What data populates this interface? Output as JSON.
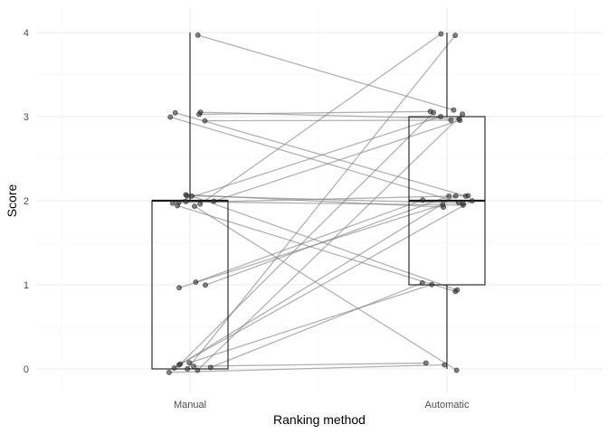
{
  "chart_data": {
    "type": "box",
    "overlay": "jittered points with paired lines",
    "title": "",
    "xlabel": "Ranking method",
    "ylabel": "Score",
    "categories": [
      "Manual",
      "Automatic"
    ],
    "ylim": [
      -0.3,
      4.3
    ],
    "yticks": [
      "0",
      "1",
      "2",
      "3",
      "4"
    ],
    "grid": true,
    "legend": "none",
    "box_stats": [
      {
        "category": "Manual",
        "min": 0,
        "q1": 0,
        "median": 2,
        "q3": 2,
        "max": 4
      },
      {
        "category": "Automatic",
        "min": 0,
        "q1": 1,
        "median": 2,
        "q3": 3,
        "max": 4
      }
    ],
    "pairs": [
      {
        "manual": 4,
        "automatic": 3
      },
      {
        "manual": 3,
        "automatic": 3
      },
      {
        "manual": 3,
        "automatic": 3
      },
      {
        "manual": 3,
        "automatic": 3
      },
      {
        "manual": 3,
        "automatic": 2
      },
      {
        "manual": 3,
        "automatic": 2
      },
      {
        "manual": 2,
        "automatic": 2
      },
      {
        "manual": 2,
        "automatic": 2
      },
      {
        "manual": 2,
        "automatic": 3
      },
      {
        "manual": 2,
        "automatic": 3
      },
      {
        "manual": 2,
        "automatic": 2
      },
      {
        "manual": 2,
        "automatic": 1
      },
      {
        "manual": 2,
        "automatic": 0
      },
      {
        "manual": 2,
        "automatic": 4
      },
      {
        "manual": 2,
        "automatic": 2
      },
      {
        "manual": 2,
        "automatic": 1
      },
      {
        "manual": 1,
        "automatic": 2
      },
      {
        "manual": 1,
        "automatic": 2
      },
      {
        "manual": 1,
        "automatic": 2
      },
      {
        "manual": 0,
        "automatic": 4
      },
      {
        "manual": 0,
        "automatic": 1
      },
      {
        "manual": 0,
        "automatic": 1
      },
      {
        "manual": 0,
        "automatic": 3
      },
      {
        "manual": 0,
        "automatic": 2
      },
      {
        "manual": 0,
        "automatic": 2
      },
      {
        "manual": 0,
        "automatic": 0
      },
      {
        "manual": 0,
        "automatic": 0
      },
      {
        "manual": 0,
        "automatic": 3
      }
    ]
  }
}
